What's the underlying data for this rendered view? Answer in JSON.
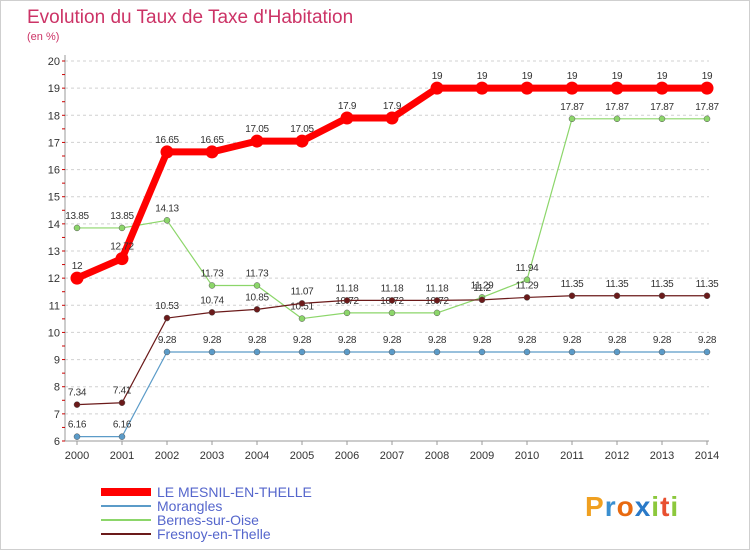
{
  "title": "Evolution du Taux de Taxe d'Habitation",
  "subtitle": "(en %)",
  "logo": {
    "parts": [
      "P",
      "r",
      "o",
      "x",
      "i",
      "t",
      "i"
    ]
  },
  "chart_data": {
    "type": "line",
    "x": [
      "2000",
      "2001",
      "2002",
      "2003",
      "2004",
      "2005",
      "2006",
      "2007",
      "2008",
      "2009",
      "2010",
      "2011",
      "2012",
      "2013",
      "2014"
    ],
    "ylim": [
      6,
      20
    ],
    "yticks": [
      "6",
      "7",
      "8",
      "9",
      "10",
      "11",
      "12",
      "13",
      "14",
      "15",
      "16",
      "17",
      "18",
      "19",
      "20"
    ],
    "grid": "horizontal-dashed",
    "series": [
      {
        "name": "Morangles",
        "color": "#5b9bc8",
        "values": [
          6.16,
          6.16,
          9.28,
          9.28,
          9.28,
          9.28,
          9.28,
          9.28,
          9.28,
          9.28,
          9.28,
          9.28,
          9.28,
          9.28,
          9.28
        ],
        "labels": [
          "6.16",
          "6.16",
          "9.28",
          "9.28",
          "9.28",
          "9.28",
          "9.28",
          "9.28",
          "9.28",
          "9.28",
          "9.28",
          "9.28",
          "9.28",
          "9.28",
          "9.28"
        ]
      },
      {
        "name": "Bernes-sur-Oise",
        "color": "#8cd66a",
        "values": [
          13.85,
          13.85,
          14.13,
          11.73,
          11.73,
          10.51,
          10.72,
          10.72,
          10.72,
          11.29,
          11.94,
          17.87,
          17.87,
          17.87,
          17.87
        ],
        "labels": [
          "13.85",
          "13.85",
          "14.13",
          "11.73",
          "11.73",
          "10.51",
          "10.72",
          "10.72",
          "10.72",
          "11.29",
          "11.94",
          "17.87",
          "17.87",
          "17.87",
          "17.87"
        ]
      },
      {
        "name": "Fresnoy-en-Thelle",
        "color": "#6b1a1a",
        "values": [
          7.34,
          7.41,
          10.53,
          10.74,
          10.85,
          11.07,
          11.18,
          11.18,
          11.18,
          11.2,
          11.29,
          11.35,
          11.35,
          11.35,
          11.35
        ],
        "labels": [
          "7.34",
          "7.41",
          "10.53",
          "10.74",
          "10.85",
          "11.07",
          "11.18",
          "11.18",
          "11.18",
          "11.2",
          "11.29",
          "11.35",
          "11.35",
          "11.35",
          "11.35"
        ]
      },
      {
        "name": "LE MESNIL-EN-THELLE",
        "color": "#ff0000",
        "values": [
          12,
          12.72,
          16.65,
          16.65,
          17.05,
          17.05,
          17.9,
          17.9,
          19,
          19,
          19,
          19,
          19,
          19,
          19
        ],
        "labels": [
          "12",
          "12.72",
          "16.65",
          "16.65",
          "17.05",
          "17.05",
          "17.9",
          "17.9",
          "19",
          "19",
          "19",
          "19",
          "19",
          "19",
          "19"
        ]
      }
    ],
    "legend": [
      {
        "name": "LE MESNIL-EN-THELLE",
        "color": "#ff0000"
      },
      {
        "name": "Morangles",
        "color": "#5b9bc8"
      },
      {
        "name": "Bernes-sur-Oise",
        "color": "#8cd66a"
      },
      {
        "name": "Fresnoy-en-Thelle",
        "color": "#6b1a1a"
      }
    ]
  }
}
